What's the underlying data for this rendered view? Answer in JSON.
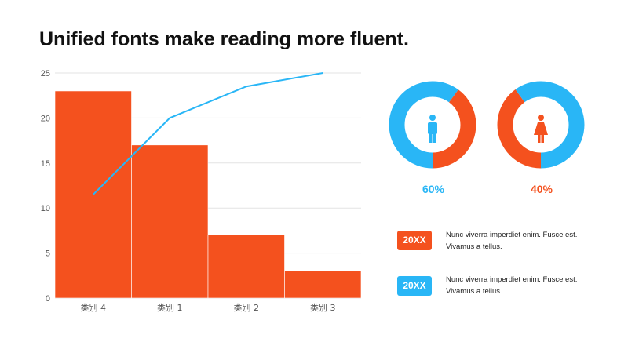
{
  "slide": {
    "title": "Unified fonts make reading more fluent."
  },
  "chart_data": [
    {
      "type": "bar",
      "categories": [
        "类别 4",
        "类别 1",
        "类别 2",
        "类别 3"
      ],
      "series": [
        {
          "type": "bar",
          "values": [
            23,
            17,
            7,
            3
          ]
        },
        {
          "type": "line",
          "values": [
            11.5,
            20,
            23.5,
            25
          ]
        }
      ],
      "ylim": [
        0,
        25
      ],
      "yticks": [
        0,
        5,
        10,
        15,
        20,
        25
      ],
      "grid": true,
      "colors": {
        "bar": "#F4511E",
        "line": "#29B6F6"
      }
    },
    {
      "type": "pie",
      "label": "60%",
      "values": [
        60,
        40
      ],
      "colors": [
        "#29B6F6",
        "#F4511E"
      ],
      "icon": "male-person-icon"
    },
    {
      "type": "pie",
      "label": "40%",
      "values": [
        40,
        60
      ],
      "colors": [
        "#F4511E",
        "#29B6F6"
      ],
      "icon": "female-person-icon"
    }
  ],
  "legend": [
    {
      "badge": "20XX",
      "color": "#F4511E",
      "line1": "Nunc viverra imperdiet enim. Fusce est.",
      "line2": "Vivamus a tellus."
    },
    {
      "badge": "20XX",
      "color": "#29B6F6",
      "line1": "Nunc viverra imperdiet enim. Fusce est.",
      "line2": "Vivamus a tellus."
    }
  ]
}
